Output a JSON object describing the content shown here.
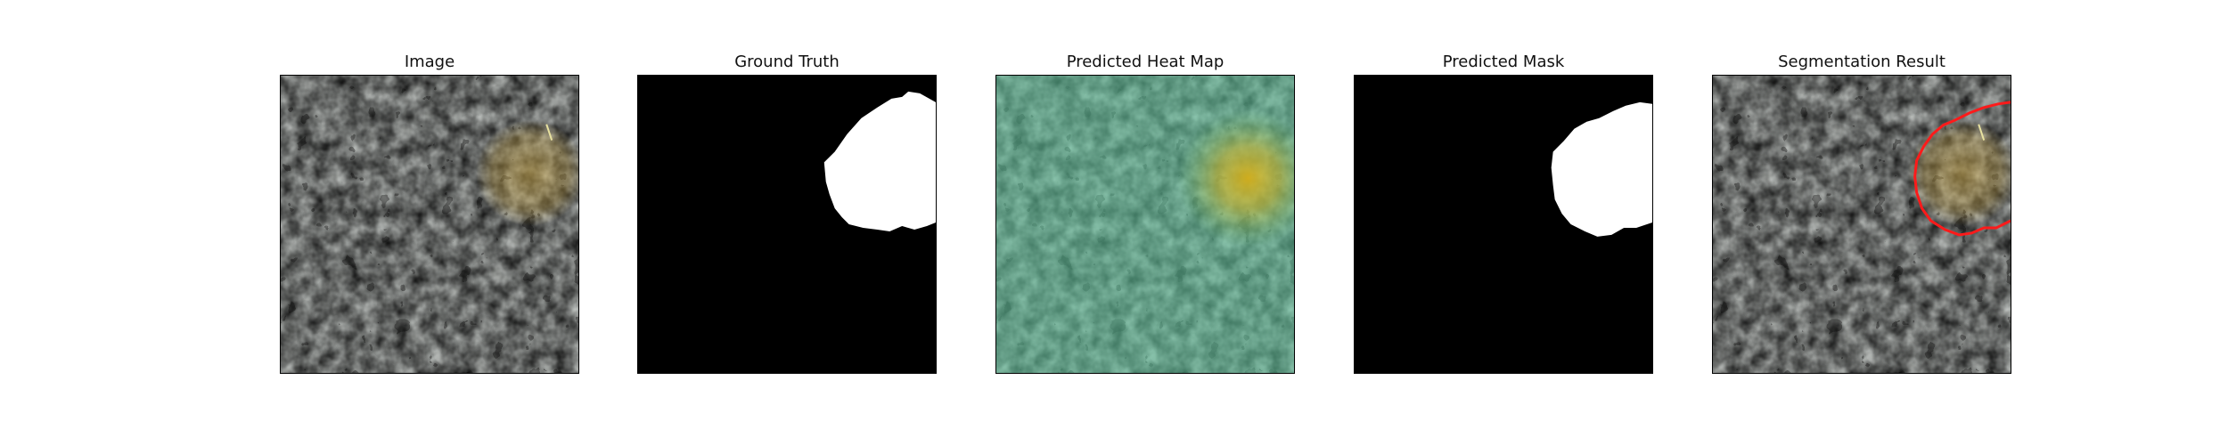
{
  "figure": {
    "panels": [
      {
        "title": "Image",
        "kind": "texture"
      },
      {
        "title": "Ground Truth",
        "kind": "mask"
      },
      {
        "title": "Predicted Heat Map",
        "kind": "heatmap"
      },
      {
        "title": "Predicted Mask",
        "kind": "mask"
      },
      {
        "title": "Segmentation Result",
        "kind": "contour"
      }
    ],
    "colors": {
      "texture_light": "#9aa39d",
      "texture_dark": "#2d302f",
      "defect_yellow": "#c8a548",
      "heatmap_tint": "#62c8a0",
      "heatmap_hot": "#e6b410",
      "mask_fg": "#ffffff",
      "mask_bg": "#000000",
      "contour": "#ff1a1a"
    }
  }
}
